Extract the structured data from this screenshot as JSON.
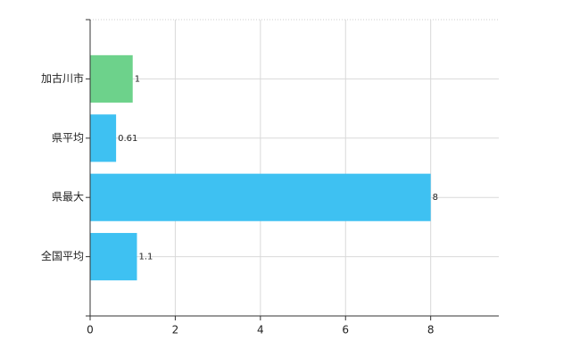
{
  "chart_data": {
    "type": "bar",
    "orientation": "horizontal",
    "categories": [
      "加古川市",
      "県平均",
      "県最大",
      "全国平均"
    ],
    "values": [
      1,
      0.61,
      8,
      1.1
    ],
    "colors": [
      "#6dd28b",
      "#3ec1f2",
      "#3ec1f2",
      "#3ec1f2"
    ],
    "xlim": [
      0,
      9.6
    ],
    "xticks": [
      0,
      2,
      4,
      6,
      8
    ],
    "grid": true
  }
}
